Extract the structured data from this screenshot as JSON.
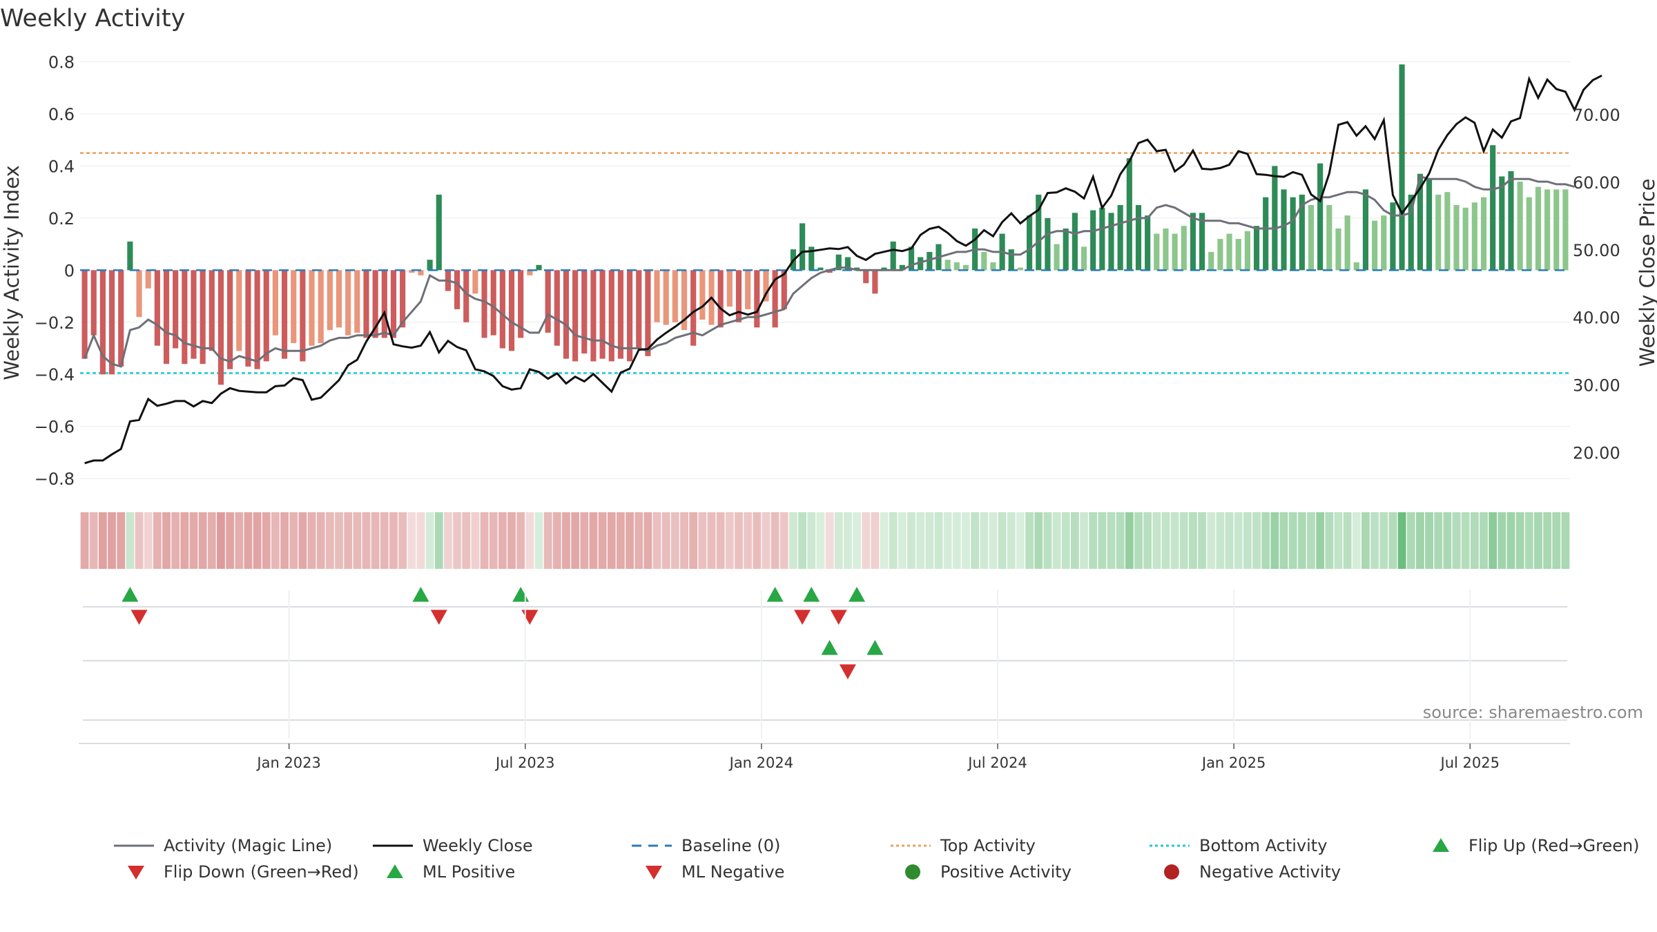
{
  "chart_data": {
    "type": "bar+line",
    "title": "Weekly Activity",
    "ylabel": "Weekly Activity Index",
    "y2label": "Weekly Close Price",
    "ylim": [
      -0.85,
      0.82
    ],
    "y2lim": [
      14.2,
      78.6
    ],
    "yticks": [
      {
        "v": 0.8,
        "t": "0.8"
      },
      {
        "v": 0.6,
        "t": "0.6"
      },
      {
        "v": 0.4,
        "t": "0.4"
      },
      {
        "v": 0.2,
        "t": "0.2"
      },
      {
        "v": 0,
        "t": "0"
      },
      {
        "v": -0.2,
        "t": "−0.2"
      },
      {
        "v": -0.4,
        "t": "−0.4"
      },
      {
        "v": -0.6,
        "t": "−0.6"
      },
      {
        "v": -0.8,
        "t": "−0.8"
      }
    ],
    "y2ticks": [
      {
        "v": 70,
        "t": "70.00"
      },
      {
        "v": 60,
        "t": "60.00"
      },
      {
        "v": 50,
        "t": "50.00"
      },
      {
        "v": 40,
        "t": "40.00"
      },
      {
        "v": 30,
        "t": "30.00"
      },
      {
        "v": 20,
        "t": "20.00"
      }
    ],
    "xticks": [
      {
        "w": 23,
        "t": "Jan 2023"
      },
      {
        "w": 49,
        "t": "Jul 2023"
      },
      {
        "w": 75,
        "t": "Jan 2024"
      },
      {
        "w": 101,
        "t": "Jul 2024"
      },
      {
        "w": 127,
        "t": "Jan 2025"
      },
      {
        "w": 153,
        "t": "Jul 2025"
      }
    ],
    "top_activity": 0.45,
    "bottom_activity": -0.395,
    "activity": [
      -0.34,
      -0.25,
      -0.4,
      -0.4,
      -0.37,
      0.11,
      -0.18,
      -0.07,
      -0.29,
      -0.36,
      -0.3,
      -0.36,
      -0.34,
      -0.36,
      -0.31,
      -0.44,
      -0.38,
      -0.31,
      -0.37,
      -0.38,
      -0.35,
      -0.25,
      -0.34,
      -0.28,
      -0.35,
      -0.29,
      -0.28,
      -0.23,
      -0.22,
      -0.25,
      -0.24,
      -0.26,
      -0.26,
      -0.26,
      -0.26,
      -0.22,
      -0.01,
      -0.02,
      0.04,
      0.29,
      -0.08,
      -0.15,
      -0.2,
      -0.09,
      -0.26,
      -0.25,
      -0.3,
      -0.31,
      -0.26,
      -0.02,
      0.02,
      -0.24,
      -0.29,
      -0.34,
      -0.35,
      -0.32,
      -0.35,
      -0.34,
      -0.35,
      -0.34,
      -0.35,
      -0.3,
      -0.33,
      -0.2,
      -0.21,
      -0.2,
      -0.23,
      -0.29,
      -0.19,
      -0.21,
      -0.22,
      -0.14,
      -0.2,
      -0.15,
      -0.22,
      -0.12,
      -0.22,
      -0.15,
      0.08,
      0.18,
      0.09,
      0.01,
      -0.01,
      0.06,
      0.05,
      0.01,
      -0.05,
      -0.09,
      0.01,
      0.11,
      0.02,
      0.09,
      0.05,
      0.07,
      0.1,
      0.04,
      0.03,
      0.02,
      0.16,
      0.07,
      0.03,
      0.14,
      0.08,
      0.01,
      0.21,
      0.29,
      0.2,
      0.1,
      0.16,
      0.22,
      0.09,
      0.23,
      0.24,
      0.22,
      0.25,
      0.43,
      0.25,
      0.21,
      0.14,
      0.16,
      0.14,
      0.17,
      0.22,
      0.22,
      0.07,
      0.12,
      0.14,
      0.12,
      0.15,
      0.17,
      0.28,
      0.4,
      0.31,
      0.28,
      0.29,
      0.25,
      0.41,
      0.25,
      0.16,
      0.21,
      0.03,
      0.31,
      0.19,
      0.21,
      0.26,
      0.79,
      0.29,
      0.37,
      0.35,
      0.29,
      0.3,
      0.25,
      0.24,
      0.26,
      0.28,
      0.48,
      0.36,
      0.38,
      0.34,
      0.28,
      0.32,
      0.31,
      0.31,
      0.31
    ],
    "magic_line": [
      -0.34,
      -0.25,
      -0.33,
      -0.36,
      -0.37,
      -0.23,
      -0.22,
      -0.19,
      -0.21,
      -0.24,
      -0.25,
      -0.28,
      -0.29,
      -0.3,
      -0.3,
      -0.34,
      -0.35,
      -0.33,
      -0.34,
      -0.35,
      -0.32,
      -0.3,
      -0.31,
      -0.31,
      -0.31,
      -0.3,
      -0.29,
      -0.27,
      -0.26,
      -0.26,
      -0.25,
      -0.25,
      -0.25,
      -0.24,
      -0.25,
      -0.2,
      -0.16,
      -0.12,
      -0.02,
      -0.04,
      -0.04,
      -0.05,
      -0.09,
      -0.11,
      -0.12,
      -0.14,
      -0.17,
      -0.2,
      -0.22,
      -0.24,
      -0.24,
      -0.17,
      -0.19,
      -0.21,
      -0.25,
      -0.26,
      -0.27,
      -0.27,
      -0.29,
      -0.3,
      -0.3,
      -0.3,
      -0.31,
      -0.29,
      -0.28,
      -0.26,
      -0.25,
      -0.24,
      -0.25,
      -0.23,
      -0.21,
      -0.2,
      -0.19,
      -0.18,
      -0.18,
      -0.17,
      -0.16,
      -0.15,
      -0.09,
      -0.06,
      -0.03,
      -0.01,
      0,
      0.01,
      0.01,
      0,
      0,
      0,
      0,
      0,
      0,
      0.02,
      0.03,
      0.04,
      0.05,
      0.06,
      0.07,
      0.07,
      0.08,
      0.08,
      0.07,
      0.07,
      0.06,
      0.06,
      0.08,
      0.11,
      0.14,
      0.15,
      0.15,
      0.14,
      0.15,
      0.15,
      0.16,
      0.17,
      0.18,
      0.19,
      0.2,
      0.2,
      0.24,
      0.25,
      0.24,
      0.22,
      0.2,
      0.19,
      0.19,
      0.19,
      0.18,
      0.18,
      0.17,
      0.16,
      0.16,
      0.16,
      0.17,
      0.19,
      0.25,
      0.27,
      0.28,
      0.28,
      0.29,
      0.3,
      0.3,
      0.29,
      0.27,
      0.23,
      0.21,
      0.21,
      0.22,
      0.36,
      0.35,
      0.35,
      0.35,
      0.35,
      0.34,
      0.32,
      0.31,
      0.31,
      0.32,
      0.35,
      0.35,
      0.35,
      0.34,
      0.34,
      0.33,
      0.33,
      0.32
    ],
    "weekly_close": [
      18.4,
      18.8,
      18.8,
      19.7,
      20.5,
      24.6,
      24.8,
      27.9,
      26.9,
      27.2,
      27.6,
      27.6,
      26.8,
      27.6,
      27.3,
      28.7,
      29.5,
      29.1,
      29.0,
      28.9,
      28.9,
      29.8,
      29.9,
      31.0,
      30.7,
      27.8,
      28.1,
      29.4,
      30.7,
      32.9,
      33.7,
      36.4,
      38.5,
      40.7,
      36.0,
      35.7,
      35.5,
      35.8,
      37.8,
      34.8,
      36.5,
      35.6,
      35.1,
      32.3,
      32.0,
      31.3,
      29.8,
      29.3,
      29.5,
      32.3,
      31.9,
      30.9,
      31.7,
      30.2,
      31.2,
      30.5,
      31.6,
      30.3,
      29.0,
      31.8,
      32.4,
      35.2,
      35.3,
      36.7,
      37.7,
      38.6,
      39.6,
      40.8,
      41.6,
      42.9,
      41.3,
      40.3,
      40.8,
      40.4,
      40.8,
      43.5,
      45.6,
      46.4,
      48.4,
      49.7,
      49.8,
      50.0,
      50.2,
      50.1,
      50.4,
      49.1,
      48.5,
      49.4,
      49.7,
      50.0,
      49.8,
      50.2,
      52.2,
      53.1,
      53.4,
      52.5,
      51.3,
      50.6,
      51.5,
      52.9,
      52.0,
      54.1,
      55.4,
      53.9,
      55.0,
      55.9,
      58.4,
      58.5,
      59.1,
      58.6,
      57.6,
      60.8,
      56.2,
      58.0,
      61.2,
      63.1,
      65.8,
      66.3,
      64.6,
      64.8,
      61.6,
      62.6,
      64.7,
      62.0,
      61.9,
      62.1,
      62.6,
      64.6,
      64.2,
      61.2,
      61.1,
      60.9,
      60.8,
      61.5,
      61.1,
      58.2,
      57.2,
      61.3,
      68.5,
      68.9,
      66.9,
      68.3,
      66.4,
      69.2,
      58.1,
      55.4,
      57.2,
      59.1,
      61.3,
      64.8,
      67.0,
      68.6,
      69.6,
      68.8,
      64.6,
      67.8,
      66.6,
      69.0,
      69.5,
      75.3,
      72.5,
      75.2,
      73.8,
      73.4,
      70.7,
      73.7,
      75.1,
      75.8
    ],
    "signals": {
      "flip_up": [
        5,
        37,
        48,
        76,
        80,
        85
      ],
      "flip_down": [
        6,
        39,
        49,
        79,
        83
      ],
      "ml_positive": [
        82,
        87
      ],
      "ml_negative": [
        84
      ]
    },
    "legend": [
      {
        "label": "Activity (Magic Line)",
        "kind": "line",
        "color": "#6e7078"
      },
      {
        "label": "Weekly Close",
        "kind": "line",
        "color": "#111111"
      },
      {
        "label": "Baseline (0)",
        "kind": "dash",
        "color": "#2b7bb9"
      },
      {
        "label": "Top Activity",
        "kind": "dot",
        "color": "#e8a060"
      },
      {
        "label": "Bottom Activity",
        "kind": "dot",
        "color": "#1cc8d8"
      },
      {
        "label": "Flip Up (Red→Green)",
        "kind": "up",
        "color": "#28a745"
      },
      {
        "label": "Flip Down (Green→Red)",
        "kind": "down",
        "color": "#d32f2f"
      },
      {
        "label": "ML Positive",
        "kind": "up",
        "color": "#28a745"
      },
      {
        "label": "ML Negative",
        "kind": "down",
        "color": "#d32f2f"
      },
      {
        "label": "Positive Activity",
        "kind": "circle",
        "color": "#2e8b2e"
      },
      {
        "label": "Negative Activity",
        "kind": "circle",
        "color": "#b22222"
      }
    ],
    "colors": {
      "pos_strong": "#2e8b57",
      "pos_light": "#8cc68c",
      "neg_strong": "#cd5c5c",
      "neg_light": "#e9967a",
      "top_line": "#e8a060",
      "bottom_line": "#1cc8d8",
      "baseline": "#2b7bb9"
    }
  },
  "source": "source: sharemaestro.com"
}
